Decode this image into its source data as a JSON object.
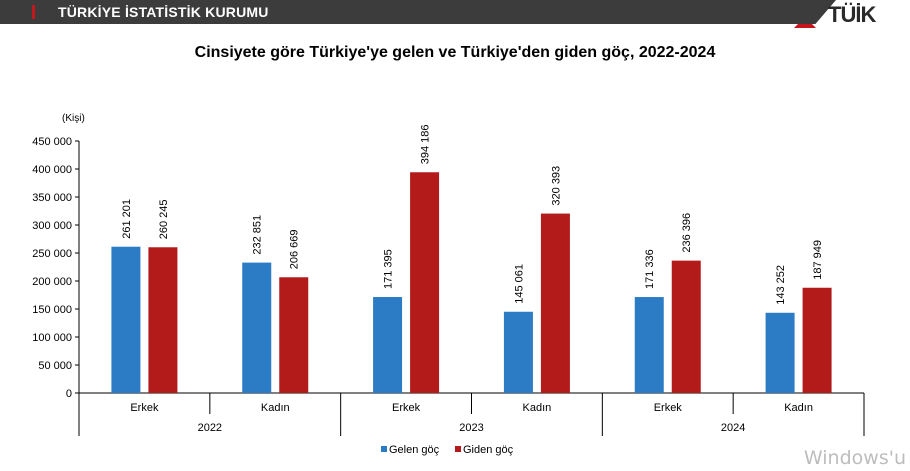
{
  "header": {
    "org_name": "TÜRKİYE İSTATİSTİK KURUMU",
    "logo_text": "TÜİK",
    "accent_color": "#c4161c",
    "bar_color": "#3c3c3c"
  },
  "watermark": "Windows'u",
  "chart_data": {
    "type": "bar",
    "title": "Cinsiyete göre Türkiye'ye gelen ve Türkiye'den giden göç, 2022-2024",
    "ylabel": "(Kişi)",
    "ylim": [
      0,
      450000
    ],
    "yticks": [
      0,
      50000,
      100000,
      150000,
      200000,
      250000,
      300000,
      350000,
      400000,
      450000
    ],
    "ytick_labels": [
      "0",
      "50 000",
      "100 000",
      "150 000",
      "200 000",
      "250 000",
      "300 000",
      "350 000",
      "400 000",
      "450 000"
    ],
    "groups": [
      {
        "year": "2022",
        "categories": [
          "Erkek",
          "Kadın"
        ]
      },
      {
        "year": "2023",
        "categories": [
          "Erkek",
          "Kadın"
        ]
      },
      {
        "year": "2024",
        "categories": [
          "Erkek",
          "Kadın"
        ]
      }
    ],
    "series": [
      {
        "name": "Gelen göç",
        "color": "#2b7cc4",
        "values": [
          261201,
          232851,
          171395,
          145061,
          171336,
          143252
        ],
        "labels": [
          "261 201",
          "232 851",
          "171 395",
          "145 061",
          "171 336",
          "143 252"
        ]
      },
      {
        "name": "Giden göç",
        "color": "#b31b1b",
        "values": [
          260245,
          206669,
          394186,
          320393,
          236396,
          187949
        ],
        "labels": [
          "260 245",
          "206 669",
          "394 186",
          "320 393",
          "236 396",
          "187 949"
        ]
      }
    ],
    "legend_position": "bottom",
    "grid": false
  }
}
